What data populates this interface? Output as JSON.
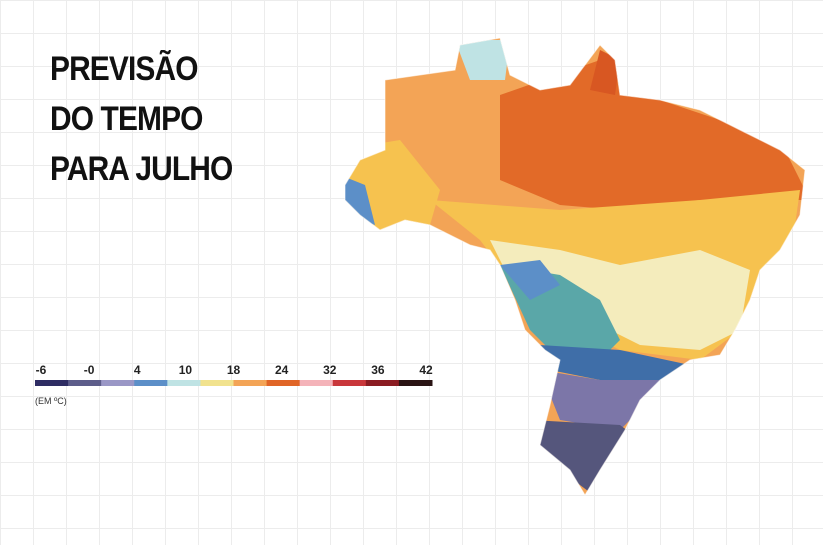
{
  "title_lines": [
    "PREVISÃO",
    "DO TEMPO",
    "PARA JULHO"
  ],
  "legend": {
    "labels": [
      "-6",
      "-0",
      "4",
      "10",
      "18",
      "24",
      "32",
      "36",
      "42"
    ],
    "colors": [
      "#2e2c63",
      "#5d5d8a",
      "#9a97c6",
      "#5c8fc8",
      "#bfe3e4",
      "#f1e28e",
      "#f3a456",
      "#e06527",
      "#f4b3b9",
      "#c9373b",
      "#8b1c22",
      "#2a1414"
    ],
    "unit": "(EM ºC)"
  }
}
